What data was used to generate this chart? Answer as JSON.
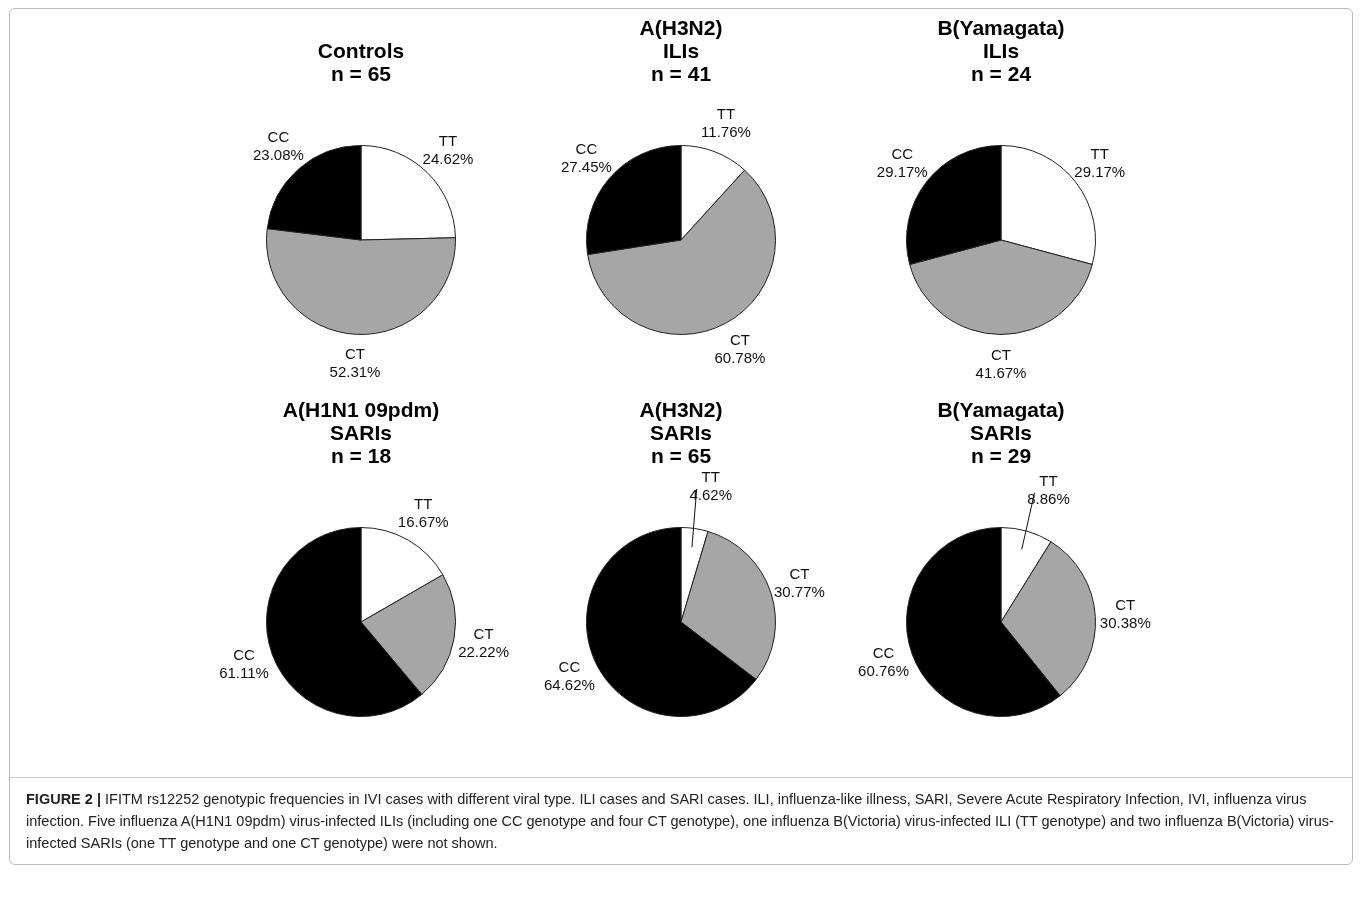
{
  "chart_data": [
    {
      "type": "pie",
      "title": "Controls",
      "subtitle": "n = 65",
      "categories": [
        "TT",
        "CT",
        "CC"
      ],
      "values": [
        24.62,
        52.31,
        23.08
      ],
      "value_labels": [
        "24.62%",
        "52.31%",
        "23.08%"
      ],
      "colors": [
        "#ffffff",
        "#a6a6a6",
        "#000000"
      ]
    },
    {
      "type": "pie",
      "title": "A(H3N2)\nILIs",
      "subtitle": "n = 41",
      "categories": [
        "TT",
        "CT",
        "CC"
      ],
      "values": [
        11.76,
        60.78,
        27.45
      ],
      "value_labels": [
        "11.76%",
        "60.78%",
        "27.45%"
      ],
      "colors": [
        "#ffffff",
        "#a6a6a6",
        "#000000"
      ]
    },
    {
      "type": "pie",
      "title": "B(Yamagata)\nILIs",
      "subtitle": "n = 24",
      "categories": [
        "TT",
        "CT",
        "CC"
      ],
      "values": [
        29.17,
        41.67,
        29.17
      ],
      "value_labels": [
        "29.17%",
        "41.67%",
        "29.17%"
      ],
      "colors": [
        "#ffffff",
        "#a6a6a6",
        "#000000"
      ]
    },
    {
      "type": "pie",
      "title": "A(H1N1 09pdm)\nSARIs",
      "subtitle": "n = 18",
      "categories": [
        "TT",
        "CT",
        "CC"
      ],
      "values": [
        16.67,
        22.22,
        61.11
      ],
      "value_labels": [
        "16.67%",
        "22.22%",
        "61.11%"
      ],
      "colors": [
        "#ffffff",
        "#a6a6a6",
        "#000000"
      ]
    },
    {
      "type": "pie",
      "title": "A(H3N2)\nSARIs",
      "subtitle": "n = 65",
      "categories": [
        "TT",
        "CT",
        "CC"
      ],
      "values": [
        4.62,
        30.77,
        64.62
      ],
      "value_labels": [
        "4.62%",
        "30.77%",
        "64.62%"
      ],
      "colors": [
        "#ffffff",
        "#a6a6a6",
        "#000000"
      ]
    },
    {
      "type": "pie",
      "title": "B(Yamagata)\nSARIs",
      "subtitle": "n = 29",
      "categories": [
        "TT",
        "CT",
        "CC"
      ],
      "values": [
        8.86,
        30.38,
        60.76
      ],
      "value_labels": [
        "8.86%",
        "30.38%",
        "60.76%"
      ],
      "colors": [
        "#ffffff",
        "#a6a6a6",
        "#000000"
      ]
    },
    {
      "type": "other",
      "annotations": [
        "FIGURE 2 |",
        "IFITM rs12252 genotypic frequencies in IVI cases with different viral type. ILI cases and SARI cases. ILI, influenza-like illness, SARI, Severe Acute Respiratory Infection, IVI, influenza virus infection. Five influenza A(H1N1 09pdm) virus-infected ILIs (including one CC genotype and four CT genotype), one influenza B(Victoria) virus-infected ILI (TT genotype) and two influenza B(Victoria) virus-infected SARIs (one TT genotype and one CT genotype) were not shown."
      ]
    }
  ]
}
